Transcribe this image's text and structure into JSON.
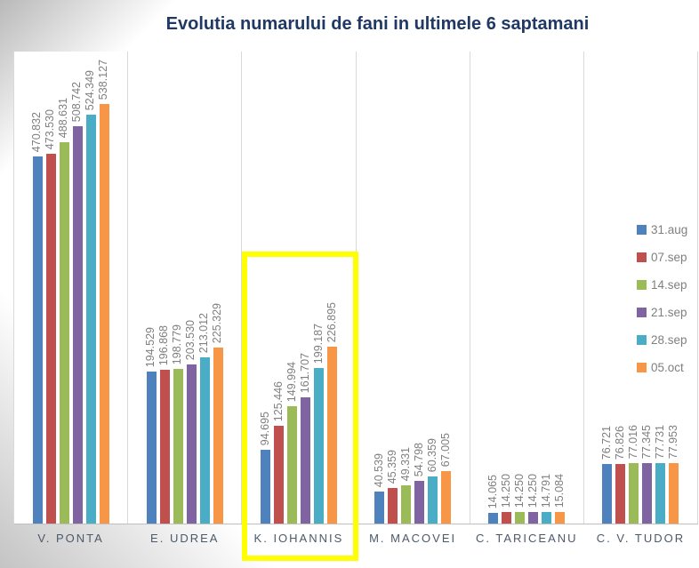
{
  "chart_data": {
    "type": "bar",
    "title": "Evolutia numarului de fani in ultimele 6 saptamani",
    "title_color": "#1F3864",
    "categories": [
      "V. PONTA",
      "E. UDREA",
      "K. IOHANNIS",
      "M. MACOVEI",
      "C. TARICEANU",
      "C. V. TUDOR"
    ],
    "series": [
      {
        "name": "31.aug",
        "color": "#4F81BD",
        "values": [
          470832,
          194529,
          94695,
          40539,
          14065,
          76721
        ],
        "labels": [
          "470.832",
          "194.529",
          "94.695",
          "40.539",
          "14.065",
          "76.721"
        ]
      },
      {
        "name": "07.sep",
        "color": "#C0504D",
        "values": [
          473530,
          196868,
          125446,
          45359,
          14250,
          76826
        ],
        "labels": [
          "473.530",
          "196.868",
          "125.446",
          "45.359",
          "14.250",
          "76.826"
        ]
      },
      {
        "name": "14.sep",
        "color": "#9BBB59",
        "values": [
          488631,
          198779,
          149994,
          49331,
          14250,
          77016
        ],
        "labels": [
          "488.631",
          "198.779",
          "149.994",
          "49.331",
          "14.250",
          "77.016"
        ]
      },
      {
        "name": "21.sep",
        "color": "#8064A2",
        "values": [
          508742,
          203530,
          161707,
          54798,
          14250,
          77345
        ],
        "labels": [
          "508.742",
          "203.530",
          "161.707",
          "54.798",
          "14.250",
          "77.345"
        ]
      },
      {
        "name": "28.sep",
        "color": "#4BACC6",
        "values": [
          524349,
          213012,
          199187,
          60359,
          14791,
          77731
        ],
        "labels": [
          "524.349",
          "213.012",
          "199.187",
          "60.359",
          "14.791",
          "77.731"
        ]
      },
      {
        "name": "05.oct",
        "color": "#F79646",
        "values": [
          538127,
          225329,
          226895,
          67005,
          15084,
          77953
        ],
        "labels": [
          "538.127",
          "225.329",
          "226.895",
          "67.005",
          "15.084",
          "77.953"
        ]
      }
    ],
    "ylim": [
      0,
      605000
    ],
    "grid": "vertical-category-separators",
    "legend_position": "right",
    "highlighted_category": "K. IOHANNIS",
    "highlight_color": "#FFFF00",
    "bar_label_color": "#7F7F7F",
    "category_label_color": "#4B5A6B"
  }
}
